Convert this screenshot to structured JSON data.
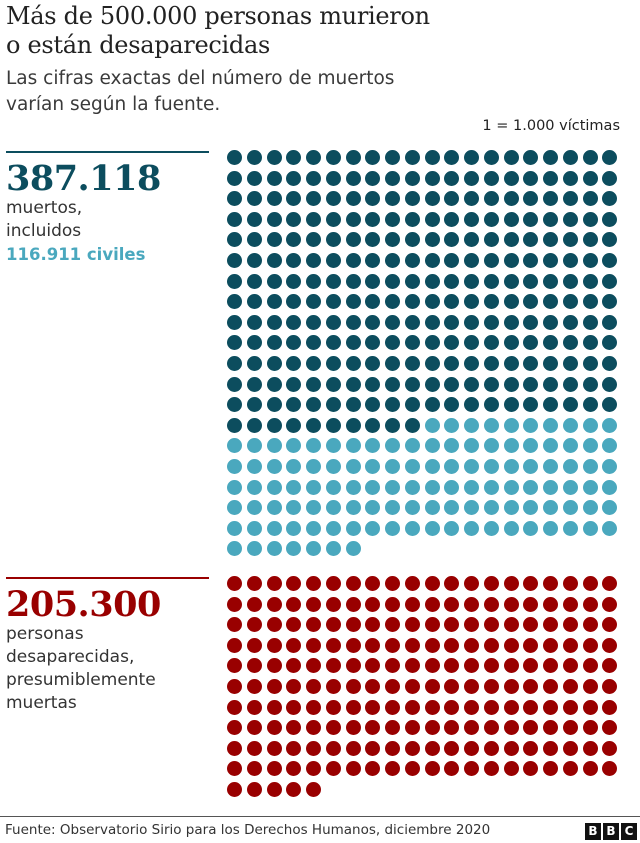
{
  "header": {
    "title_line1": "Más de 500.000 personas murieron",
    "title_line2": "o están desaparecidas",
    "subtitle_line1": "Las cifras exactas del número de muertos",
    "subtitle_line2": "varían según la fuente.",
    "legend": "1 = 1.000 víctimas"
  },
  "deaths": {
    "number": "387.118",
    "desc_line1": "muertos,",
    "desc_line2": "incluidos",
    "civilians": "116.911 civiles"
  },
  "missing": {
    "number": "205.300",
    "desc_line1": "personas desaparecidas,",
    "desc_line2": "presumiblemente",
    "desc_line3": "muertas"
  },
  "footer": {
    "source": "Fuente: Observatorio Sirio para los Derechos Humanos, diciembre 2020",
    "logo": [
      "B",
      "B",
      "C"
    ]
  },
  "colors": {
    "deaths_dark": "#0c4d5e",
    "civilians_light": "#4aa8be",
    "missing_red": "#990000",
    "text": "#222222"
  },
  "chart_data": {
    "type": "waffle",
    "title": "Más de 500.000 personas murieron o están desaparecidas",
    "subtitle": "Las cifras exactas del número de muertos varían según la fuente.",
    "unit": "1 = 1.000 víctimas",
    "columns": 20,
    "groups": [
      {
        "name": "muertos (no civiles)",
        "dots": 270,
        "color": "#0c4d5e"
      },
      {
        "name": "civiles muertos",
        "dots": 117,
        "value": 116911,
        "color": "#4aa8be"
      },
      {
        "name": "personas desaparecidas, presumiblemente muertas",
        "dots": 205,
        "value": 205300,
        "color": "#990000"
      }
    ],
    "totals": {
      "muertos": 387118,
      "civiles": 116911,
      "desaparecidos": 205300
    },
    "source": "Fuente: Observatorio Sirio para los Derechos Humanos, diciembre 2020"
  }
}
